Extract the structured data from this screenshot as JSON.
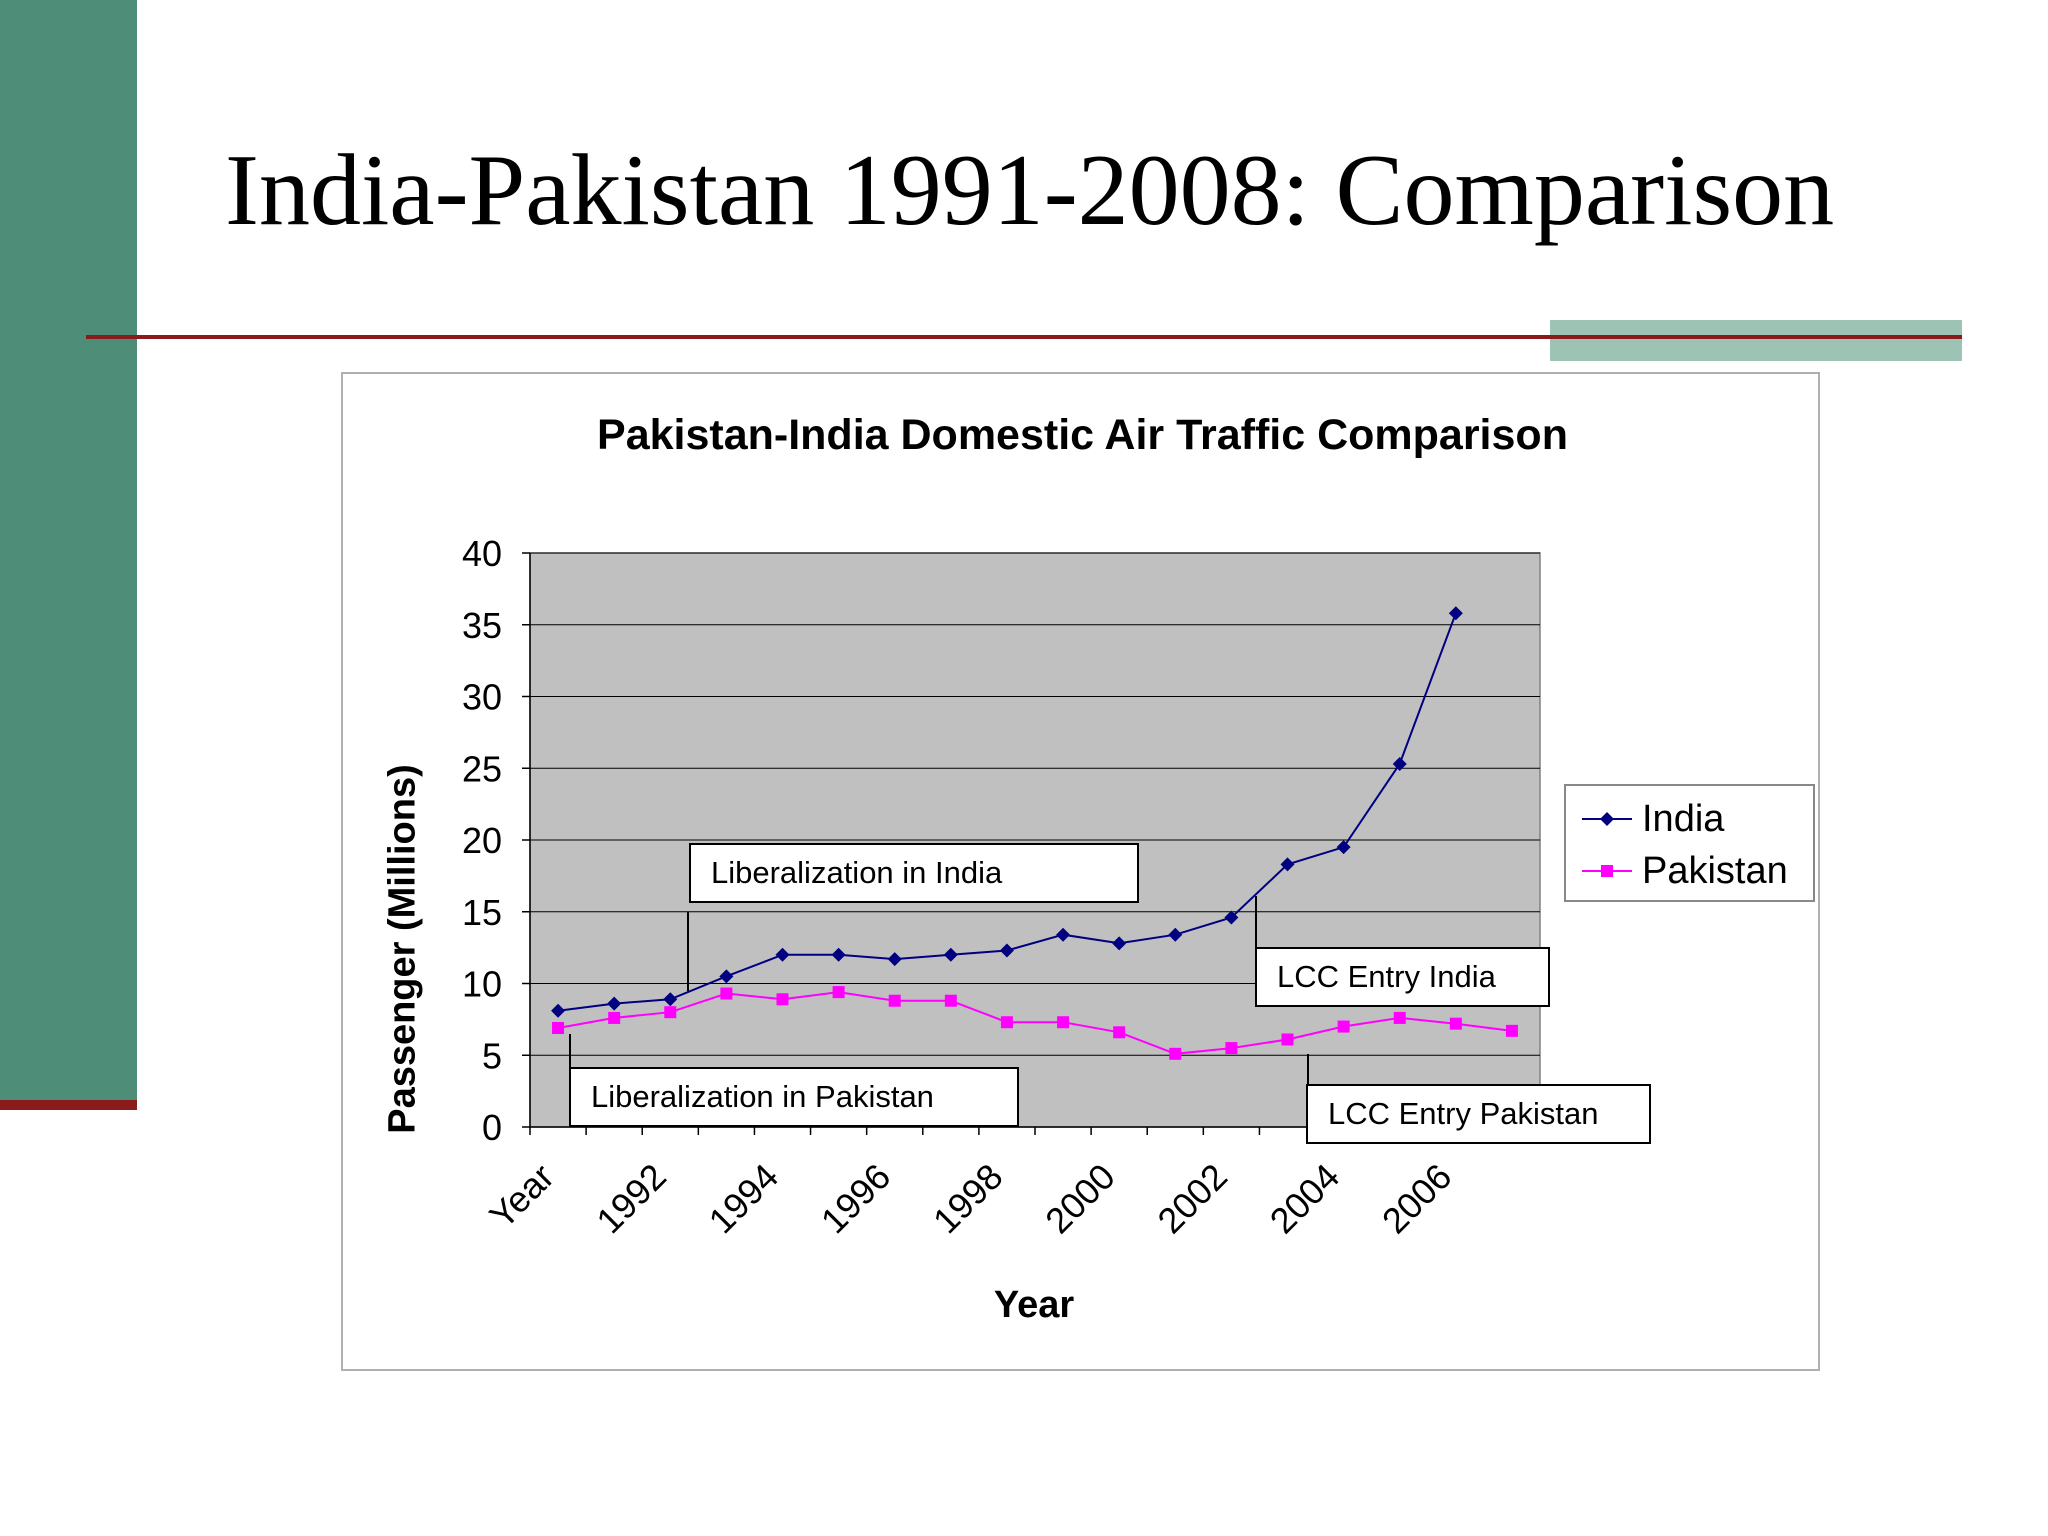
{
  "slide": {
    "title": "India-Pakistan 1991-2008: Comparison"
  },
  "colors": {
    "left_bar": "#4e8e79",
    "rule": "#8b1a1a",
    "accent": "#9cc3b4",
    "plot_bg": "#c0c0c0",
    "india": "#000080",
    "pakistan": "#ff00ff"
  },
  "chart_data": {
    "type": "line",
    "title": "Pakistan-India Domestic Air Traffic Comparison",
    "xlabel": "Year",
    "ylabel": "Passenger (Millions)",
    "ylim": [
      0,
      40
    ],
    "yticks": [
      0,
      5,
      10,
      15,
      20,
      25,
      30,
      35,
      40
    ],
    "xtick_labels": [
      "Year",
      "1992",
      "1994",
      "1996",
      "1998",
      "2000",
      "2002",
      "2004",
      "2006"
    ],
    "x": [
      "1991",
      "1992",
      "1993",
      "1994",
      "1995",
      "1996",
      "1997",
      "1998",
      "1999",
      "2000",
      "2001",
      "2002",
      "2003",
      "2004",
      "2005",
      "2006",
      "2007",
      "2008"
    ],
    "grid": true,
    "legend": "right",
    "series": [
      {
        "name": "India",
        "marker": "diamond",
        "values": [
          8.1,
          8.6,
          8.9,
          10.5,
          12.0,
          12.0,
          11.7,
          12.0,
          12.3,
          13.4,
          12.8,
          13.4,
          14.6,
          18.3,
          19.5,
          25.3,
          35.8,
          null
        ]
      },
      {
        "name": "Pakistan",
        "marker": "square",
        "values": [
          6.9,
          7.6,
          8.0,
          9.3,
          8.9,
          9.4,
          8.8,
          8.8,
          7.3,
          7.3,
          6.6,
          5.1,
          5.5,
          6.1,
          7.0,
          7.6,
          7.2,
          6.7
        ]
      }
    ],
    "annotations": [
      {
        "text": "Liberalization in India"
      },
      {
        "text": "Liberalization in Pakistan"
      },
      {
        "text": "LCC Entry India"
      },
      {
        "text": "LCC Entry Pakistan"
      }
    ]
  }
}
